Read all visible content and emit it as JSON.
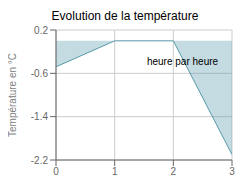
{
  "chart_data": {
    "type": "area",
    "title": "Evolution de la température",
    "ylabel": "Température en °C",
    "x": [
      0,
      1,
      2,
      3
    ],
    "series": [
      {
        "name": "Température",
        "color": "#5599aa",
        "values": [
          -0.48,
          0.0,
          0.0,
          -2.1
        ]
      }
    ],
    "xlim": [
      0,
      3
    ],
    "ylim": [
      -2.2,
      0.2
    ],
    "xticks": [
      0,
      1,
      2,
      3
    ],
    "yticks": [
      0.2,
      -0.6,
      -1.4,
      -2.2
    ],
    "grid": true,
    "annotations": [
      {
        "text": "heure par heure",
        "x": 1.55,
        "y": -0.38
      }
    ]
  }
}
